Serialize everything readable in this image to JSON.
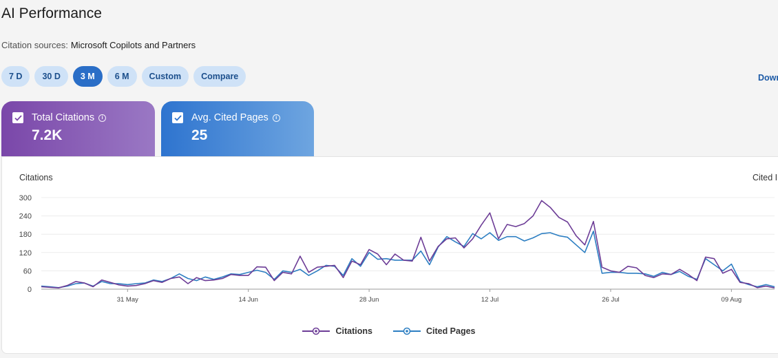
{
  "header": {
    "title": "AI Performance",
    "sources_label": "Citation sources:",
    "sources_value": "Microsoft Copilots and Partners"
  },
  "ranges": [
    {
      "label": "7 D",
      "active": false
    },
    {
      "label": "30 D",
      "active": false
    },
    {
      "label": "3 M",
      "active": true
    },
    {
      "label": "6 M",
      "active": false
    },
    {
      "label": "Custom",
      "active": false
    },
    {
      "label": "Compare",
      "active": false
    }
  ],
  "download_label": "Down",
  "metrics": [
    {
      "label": "Total Citations",
      "value": "7.2K",
      "info_icon": "info-icon",
      "checked": true
    },
    {
      "label": "Avg. Cited Pages",
      "value": "25",
      "info_icon": "info-icon",
      "checked": true
    }
  ],
  "colors": {
    "citations": "#6c3c96",
    "cited_pages": "#2c7ec2",
    "active_pill": "#2a6ec7",
    "pill": "#cfe2f7"
  },
  "chart_data": {
    "type": "line",
    "ylabel_left": "Citations",
    "ylabel_right": "Cited I",
    "y_ticks": [
      "0",
      "60",
      "120",
      "180",
      "240",
      "300"
    ],
    "ylim": [
      0,
      300
    ],
    "x_tick_labels": [
      "31 May",
      "14 Jun",
      "28 Jun",
      "12 Jul",
      "26 Jul",
      "09 Aug"
    ],
    "x_tick_index": [
      10,
      24,
      38,
      52,
      66,
      80
    ],
    "grid": true,
    "legend_position": "bottom",
    "series": [
      {
        "name": "Citations",
        "values": [
          8,
          6,
          4,
          12,
          25,
          20,
          8,
          30,
          22,
          14,
          10,
          12,
          18,
          28,
          22,
          35,
          40,
          18,
          38,
          28,
          30,
          35,
          48,
          45,
          45,
          73,
          72,
          28,
          55,
          50,
          108,
          55,
          72,
          75,
          78,
          38,
          92,
          80,
          130,
          115,
          80,
          115,
          95,
          92,
          170,
          92,
          140,
          165,
          168,
          135,
          165,
          210,
          250,
          165,
          212,
          205,
          215,
          240,
          290,
          268,
          235,
          220,
          175,
          145,
          222,
          72,
          60,
          55,
          75,
          70,
          45,
          38,
          50,
          48,
          65,
          48,
          28,
          105,
          100,
          52,
          65,
          22,
          18,
          5,
          10,
          4
        ],
        "marker": "circle-dot"
      },
      {
        "name": "Cited Pages",
        "values": [
          10,
          8,
          5,
          10,
          18,
          20,
          10,
          25,
          18,
          18,
          15,
          18,
          20,
          30,
          25,
          35,
          50,
          35,
          28,
          40,
          32,
          40,
          50,
          48,
          55,
          62,
          55,
          32,
          60,
          55,
          65,
          45,
          60,
          78,
          75,
          45,
          100,
          75,
          120,
          98,
          100,
          95,
          95,
          95,
          125,
          80,
          138,
          172,
          155,
          140,
          182,
          165,
          185,
          160,
          172,
          172,
          158,
          168,
          182,
          185,
          175,
          170,
          145,
          120,
          190,
          52,
          55,
          55,
          52,
          52,
          50,
          42,
          55,
          48,
          58,
          42,
          32,
          100,
          80,
          60,
          82,
          25,
          15,
          8,
          15,
          8
        ],
        "marker": "circle-dot"
      }
    ]
  }
}
